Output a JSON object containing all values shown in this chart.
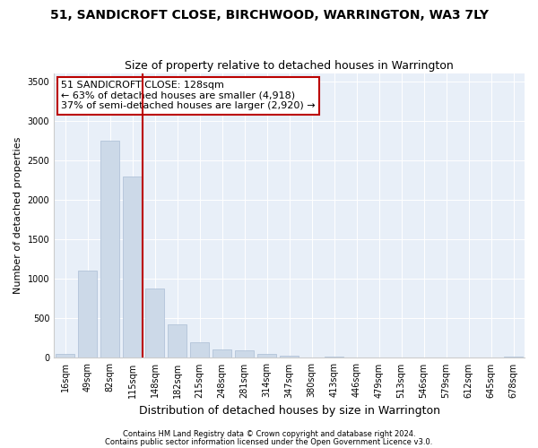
{
  "title1": "51, SANDICROFT CLOSE, BIRCHWOOD, WARRINGTON, WA3 7LY",
  "title2": "Size of property relative to detached houses in Warrington",
  "xlabel": "Distribution of detached houses by size in Warrington",
  "ylabel": "Number of detached properties",
  "categories": [
    "16sqm",
    "49sqm",
    "82sqm",
    "115sqm",
    "148sqm",
    "182sqm",
    "215sqm",
    "248sqm",
    "281sqm",
    "314sqm",
    "347sqm",
    "380sqm",
    "413sqm",
    "446sqm",
    "479sqm",
    "513sqm",
    "546sqm",
    "579sqm",
    "612sqm",
    "645sqm",
    "678sqm"
  ],
  "values": [
    50,
    1100,
    2750,
    2300,
    880,
    430,
    200,
    105,
    90,
    45,
    30,
    5,
    20,
    5,
    0,
    0,
    0,
    0,
    0,
    0,
    20
  ],
  "bar_color": "#ccd9e8",
  "bar_edge_color": "#aabdd4",
  "vline_color": "#bb0000",
  "annotation_text": "51 SANDICROFT CLOSE: 128sqm\n← 63% of detached houses are smaller (4,918)\n37% of semi-detached houses are larger (2,920) →",
  "annotation_box_color": "white",
  "annotation_box_edge": "#bb0000",
  "ylim": [
    0,
    3600
  ],
  "yticks": [
    0,
    500,
    1000,
    1500,
    2000,
    2500,
    3000,
    3500
  ],
  "footer1": "Contains HM Land Registry data © Crown copyright and database right 2024.",
  "footer2": "Contains public sector information licensed under the Open Government Licence v3.0.",
  "plot_background": "#e8eff8",
  "title1_fontsize": 10,
  "title2_fontsize": 9,
  "xlabel_fontsize": 9,
  "ylabel_fontsize": 8,
  "tick_fontsize": 7,
  "annotation_fontsize": 8,
  "footer_fontsize": 6
}
